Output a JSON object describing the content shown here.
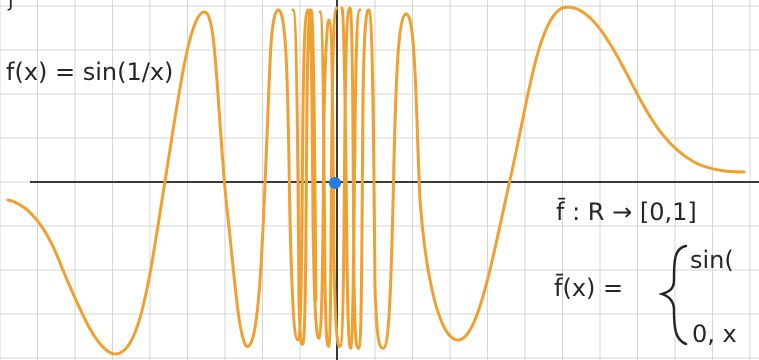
{
  "canvas": {
    "background": "#ffffff",
    "grid_color": "#d4d4d4",
    "axis_color": "#3a3a3a"
  },
  "curve": {
    "name": "sin(1/x) sketch",
    "color": "#f0a030",
    "stroke_label": "orange ink"
  },
  "origin_point": {
    "color": "#2a7be0"
  },
  "annotations": {
    "function_label": "f(x) = sin(1/x)",
    "map_label": "f̄ : R → [0,1]",
    "piecewise_lhs": "f̄(x) =",
    "piecewise_case_1": "sin(",
    "piecewise_case_2": "0, x",
    "top_left_fragment": "j"
  }
}
